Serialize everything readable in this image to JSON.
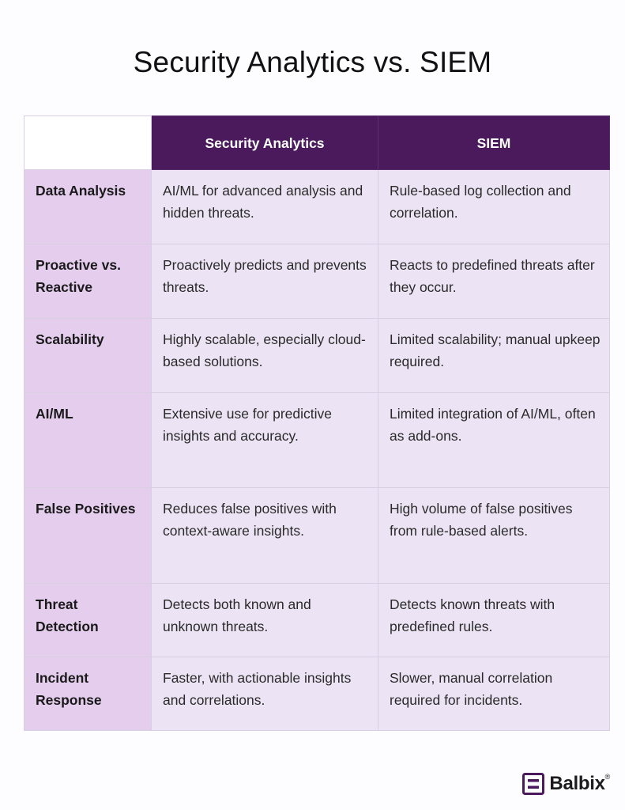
{
  "title": "Security Analytics vs. SIEM",
  "table": {
    "corner": "",
    "columns": [
      "Security Analytics",
      "SIEM"
    ],
    "rows": [
      {
        "label": "Data Analysis",
        "analytics": "AI/ML for advanced analysis and hidden threats.",
        "siem": "Rule-based log collection and correlation."
      },
      {
        "label": "Proactive vs. Reactive",
        "analytics": "Proactively predicts and prevents threats.",
        "siem": "Reacts to predefined threats after they occur."
      },
      {
        "label": "Scalability",
        "analytics": "Highly scalable, especially cloud-based solutions.",
        "siem": "Limited scalability; manual upkeep required."
      },
      {
        "label": "AI/ML",
        "analytics": "Extensive use for predictive insights and accuracy.",
        "siem": "Limited integration of AI/ML, often as add-ons."
      },
      {
        "label": "False Positives",
        "analytics": "Reduces false positives with context-aware insights.",
        "siem": "High volume of false positives from rule-based alerts."
      },
      {
        "label": "Threat Detection",
        "analytics": "Detects both known and unknown threats.",
        "siem": "Detects known threats with predefined rules."
      },
      {
        "label": "Incident Response",
        "analytics": "Faster, with actionable insights and correlations.",
        "siem": "Slower, manual correlation required for incidents."
      }
    ]
  },
  "brand": {
    "name": "Balbix",
    "mark": "®",
    "icon": "balbix-logo-icon"
  },
  "colors": {
    "header": "#4a1a5c",
    "label_column": "#e5cdee",
    "cell": "#ece4f4",
    "logo": "#4a1a5c"
  }
}
